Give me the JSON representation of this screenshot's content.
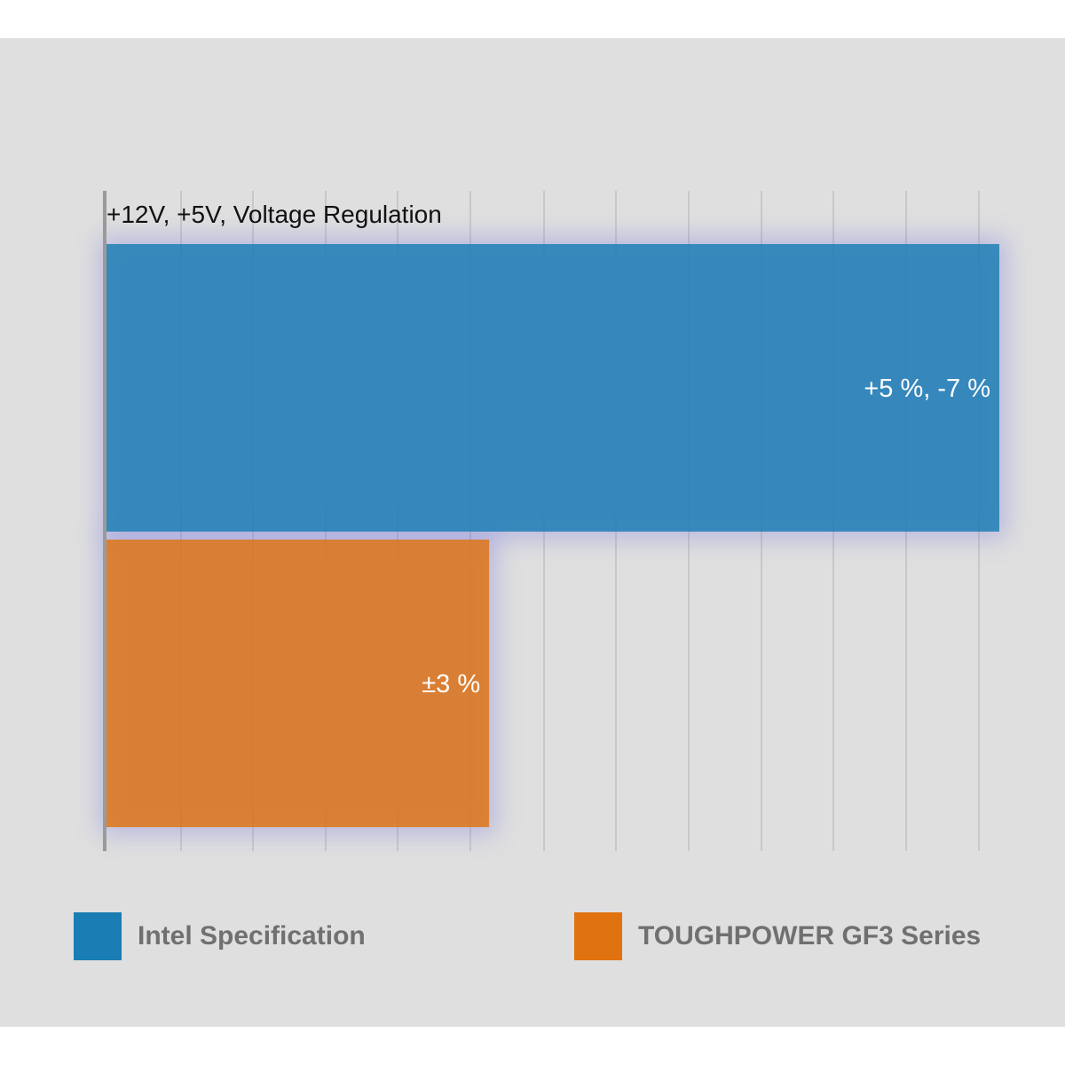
{
  "chart_data": {
    "type": "bar",
    "orientation": "horizontal",
    "title": "+12V, +5V, Voltage Regulation",
    "xlabel": "",
    "ylabel": "",
    "xlim": [
      0,
      8.5
    ],
    "grid": true,
    "legend_position": "bottom",
    "series": [
      {
        "name": "Intel Specification",
        "value": 7,
        "label": "+5 %, -7 %",
        "color": "#1a7db3"
      },
      {
        "name": "TOUGHPOWER GF3 Series",
        "value": 3,
        "label": "±3 %",
        "color": "#e07310"
      }
    ]
  },
  "legend": {
    "items": [
      {
        "label": "Intel Specification",
        "color": "#1a7db3"
      },
      {
        "label": "TOUGHPOWER GF3 Series",
        "color": "#e07310"
      }
    ]
  },
  "colors": {
    "background": "#dfdfdf",
    "gridline": "#c8c8c8",
    "glow": "#6f6fe0"
  }
}
